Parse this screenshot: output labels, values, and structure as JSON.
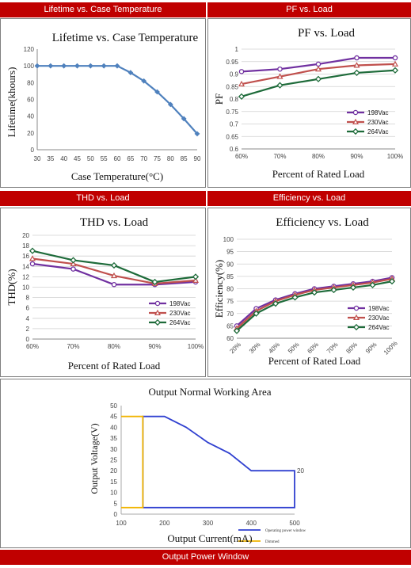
{
  "headers": {
    "lifetime": "Lifetime vs. Case Temperature",
    "pf": "PF vs. Load",
    "thd": "THD vs. Load",
    "efficiency": "Efficiency vs. Load",
    "window": "Output Power Window"
  },
  "colors": {
    "header_bg": "#c00000",
    "series_198": "#7030a0",
    "series_230": "#c0504d",
    "series_264": "#1e6b3a",
    "lifetime_line": "#4f81bd",
    "window_blue": "#3040d0",
    "window_yellow": "#f0b400"
  },
  "chart_data": [
    {
      "id": "lifetime",
      "type": "line",
      "title": "Lifetime vs. Case Temperature",
      "xlabel": "Case Temperature(°C)",
      "ylabel": "Lifetime(khours)",
      "x": [
        30,
        35,
        40,
        45,
        50,
        55,
        60,
        65,
        70,
        75,
        80,
        85,
        90
      ],
      "series": [
        {
          "values": [
            100,
            100,
            100,
            100,
            100,
            100,
            100,
            92,
            82,
            69,
            54,
            37,
            19
          ]
        }
      ],
      "xlim": [
        30,
        90
      ],
      "ylim": [
        0,
        120
      ],
      "yticks": [
        0,
        20,
        40,
        60,
        80,
        100,
        120
      ],
      "grid": false
    },
    {
      "id": "pf",
      "type": "line",
      "title": "PF vs. Load",
      "xlabel": "Percent of Rated Load",
      "ylabel": "PF",
      "categories": [
        "60%",
        "70%",
        "80%",
        "90%",
        "100%"
      ],
      "series": [
        {
          "name": "198Vac",
          "values": [
            0.91,
            0.92,
            0.94,
            0.965,
            0.965
          ]
        },
        {
          "name": "230Vac",
          "values": [
            0.86,
            0.89,
            0.92,
            0.935,
            0.94
          ]
        },
        {
          "name": "264Vac",
          "values": [
            0.81,
            0.855,
            0.88,
            0.905,
            0.915
          ]
        }
      ],
      "ylim": [
        0.6,
        1.0
      ],
      "yticks": [
        "0.6",
        "0.65",
        "0.7",
        "0.75",
        "0.8",
        "0.85",
        "0.9",
        "0.95",
        "1"
      ],
      "legend": "bottom-right",
      "grid": true
    },
    {
      "id": "thd",
      "type": "line",
      "title": "THD vs. Load",
      "xlabel": "Percent of Rated Load",
      "ylabel": "THD(%)",
      "categories": [
        "60%",
        "70%",
        "80%",
        "90%",
        "100%"
      ],
      "series": [
        {
          "name": "198Vac",
          "values": [
            14.5,
            13.5,
            10.5,
            10.5,
            11
          ]
        },
        {
          "name": "230Vac",
          "values": [
            15.5,
            14.5,
            12.2,
            10.7,
            11.3
          ]
        },
        {
          "name": "264Vac",
          "values": [
            17,
            15.2,
            14.2,
            11,
            12
          ]
        }
      ],
      "ylim": [
        0,
        20
      ],
      "yticks": [
        0,
        2,
        4,
        6,
        8,
        10,
        12,
        14,
        16,
        18,
        20
      ],
      "legend": "bottom-right",
      "grid": true
    },
    {
      "id": "efficiency",
      "type": "line",
      "title": "Efficiency vs. Load",
      "xlabel": "Percent of Rated Load",
      "ylabel": "Efficiency(%)",
      "categories": [
        "20%",
        "30%",
        "40%",
        "50%",
        "60%",
        "70%",
        "80%",
        "90%",
        "100%"
      ],
      "series": [
        {
          "name": "198Vac",
          "values": [
            65,
            72,
            75.5,
            78,
            80,
            81,
            82,
            83,
            84.5
          ]
        },
        {
          "name": "230Vac",
          "values": [
            64,
            71,
            75,
            77.5,
            79.5,
            80.5,
            81.5,
            82.5,
            84
          ]
        },
        {
          "name": "264Vac",
          "values": [
            63,
            70,
            74,
            76.5,
            78.5,
            79.5,
            80.5,
            81.5,
            83
          ]
        }
      ],
      "ylim": [
        60,
        100
      ],
      "yticks": [
        60,
        65,
        70,
        75,
        80,
        85,
        90,
        95,
        100
      ],
      "legend": "bottom-right",
      "grid": true
    },
    {
      "id": "window",
      "type": "line",
      "title": "Output Normal Working Area",
      "xlabel": "Output Current(mA)",
      "ylabel": "Output Voltage(V)",
      "xlim": [
        100,
        500
      ],
      "ylim": [
        0,
        50
      ],
      "xticks": [
        100,
        200,
        300,
        400,
        500
      ],
      "yticks": [
        0,
        5,
        10,
        15,
        20,
        25,
        30,
        35,
        40,
        45,
        50
      ],
      "annotation": "20",
      "series": [
        {
          "name": "Operating power window",
          "x": [
            150,
            150,
            200,
            250,
            300,
            350,
            400,
            500,
            500,
            150
          ],
          "y": [
            3,
            45,
            45,
            40,
            33,
            28,
            20,
            20,
            3,
            3
          ]
        },
        {
          "name": "Dimmed",
          "x": [
            100,
            150,
            150,
            100
          ],
          "y": [
            45,
            45,
            3,
            3
          ]
        }
      ],
      "legend": "bottom-right",
      "grid": false
    }
  ]
}
